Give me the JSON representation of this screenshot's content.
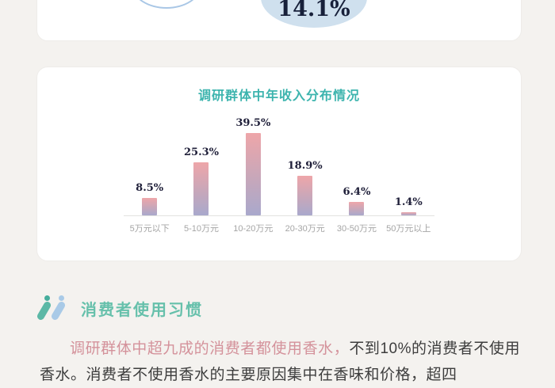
{
  "top_card": {
    "bubble_value": "14.1%",
    "bubble_fill_color": "#cfe0ee",
    "bubble_outline_color": "#a9c7e6"
  },
  "chart_data": {
    "type": "bar",
    "title": "调研群体中年收入分布情况",
    "categories": [
      "5万元以下",
      "5-10万元",
      "10-20万元",
      "20-30万元",
      "30-50万元",
      "50万元以上"
    ],
    "values": [
      8.5,
      25.3,
      39.5,
      18.9,
      6.4,
      1.4
    ],
    "value_labels": [
      "8.5%",
      "25.3%",
      "39.5%",
      "18.9%",
      "6.4%",
      "1.4%"
    ],
    "xlabel": "",
    "ylabel": "",
    "ylim": [
      0,
      45
    ],
    "grid": false,
    "legend": false,
    "title_color": "#3db4ae",
    "bar_gradient_top": "#eea6a9",
    "bar_gradient_bottom": "#a9a8cc",
    "axis_line_color": "#e3e2e0",
    "category_label_color": "#a5a5a5"
  },
  "section": {
    "title": "消费者使用习惯",
    "title_color": "#66c0ab",
    "icon": "double-slash-icon"
  },
  "paragraph": {
    "highlight": "调研群体中超九成的消费者都使用香水，",
    "rest": "不到10%的消费者不使用香水。消费者不使用香水的主要原因集中在香味和价格，超四",
    "highlight_color": "#d4929b",
    "text_color": "#3d3d3d"
  }
}
